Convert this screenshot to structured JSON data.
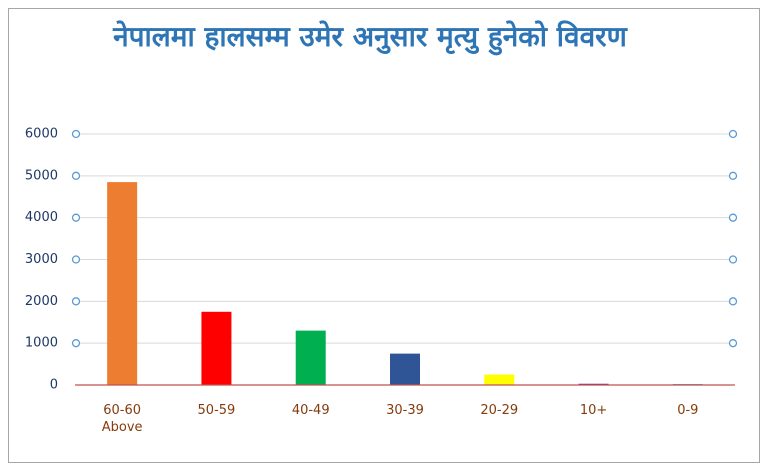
{
  "chart_data": {
    "type": "bar",
    "title": "नेपालमा हालसम्म उमेर अनुसार मृत्यु हुनेको विवरण",
    "categories": [
      "60-60 Above",
      "50-59",
      "40-49",
      "30-39",
      "20-29",
      "10+",
      "0-9"
    ],
    "values": [
      4850,
      1750,
      1300,
      750,
      250,
      30,
      20
    ],
    "colors": [
      "#ed7d31",
      "#ff0000",
      "#00b050",
      "#2f5597",
      "#ffff00",
      "#7030a0",
      "#4472c4"
    ],
    "ylim": [
      0,
      6000
    ],
    "yticks": [
      0,
      1000,
      2000,
      3000,
      4000,
      5000,
      6000
    ],
    "grid": true
  }
}
